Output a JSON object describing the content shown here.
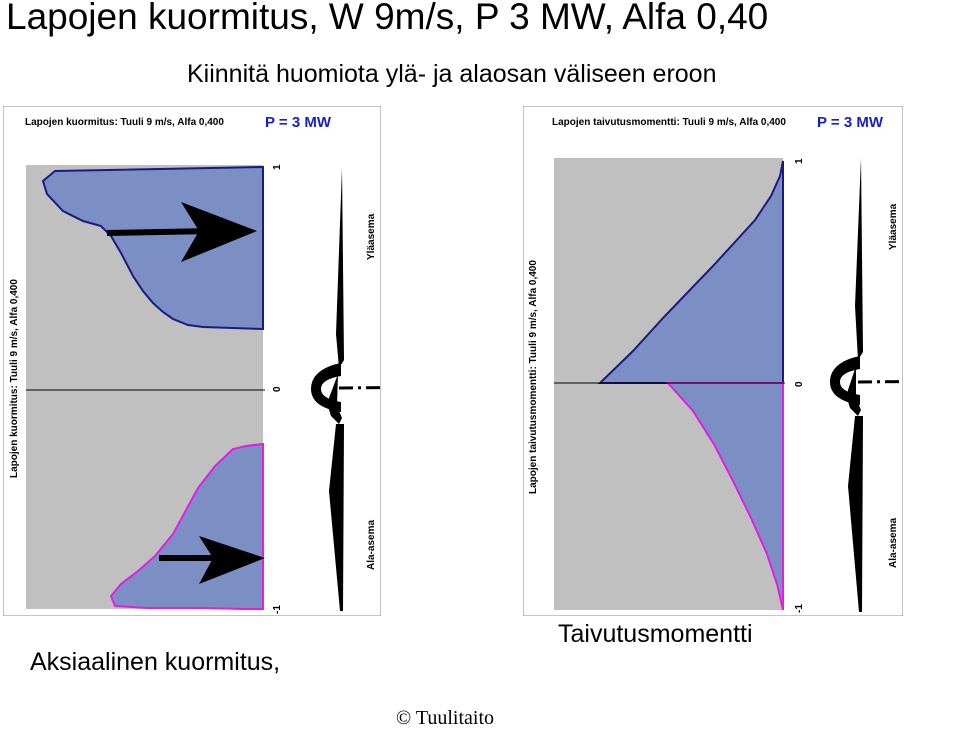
{
  "header": {
    "title": "Lapojen kuormitus, W 9m/s, P 3 MW, Alfa 0,40",
    "subtitle": "Kiinnitä huomiota ylä- ja alaosan väliseen eroon"
  },
  "panels": {
    "left": {
      "title": "Lapojen kuormitus: Tuuli 9 m/s, Alfa 0,400",
      "power": "P = 3 MW",
      "vertical_label": "Lapojen kuormitus: Tuuli 9 m/s, Alfa 0,400",
      "tick_top": "1",
      "tick_mid": "0",
      "tick_bottom": "-1",
      "upper_position": "Yläasema",
      "lower_position": "Ala-asema",
      "caption": "Aksiaalinen kuormitus,"
    },
    "right": {
      "title": "Lapojen taivutusmomentti: Tuuli 9 m/s, Alfa 0,400",
      "power": "P = 3 MW",
      "vertical_label": "Lapojen taivutusmomentti: Tuuli 9 m/s, Alfa 0,400",
      "tick_top": "1",
      "tick_mid": "0",
      "tick_bottom": "-1",
      "upper_position": "Yläasema",
      "lower_position": "Ala-asema",
      "caption": "Taivutusmomentti"
    }
  },
  "footer": {
    "copyright": "© Tuulitaito"
  },
  "colors": {
    "fill": "#7b8fc5",
    "background": "#c0c0c0",
    "upper_line": "#1a1a80",
    "lower_line": "#e020e0",
    "power_label": "#1a20c8"
  }
}
